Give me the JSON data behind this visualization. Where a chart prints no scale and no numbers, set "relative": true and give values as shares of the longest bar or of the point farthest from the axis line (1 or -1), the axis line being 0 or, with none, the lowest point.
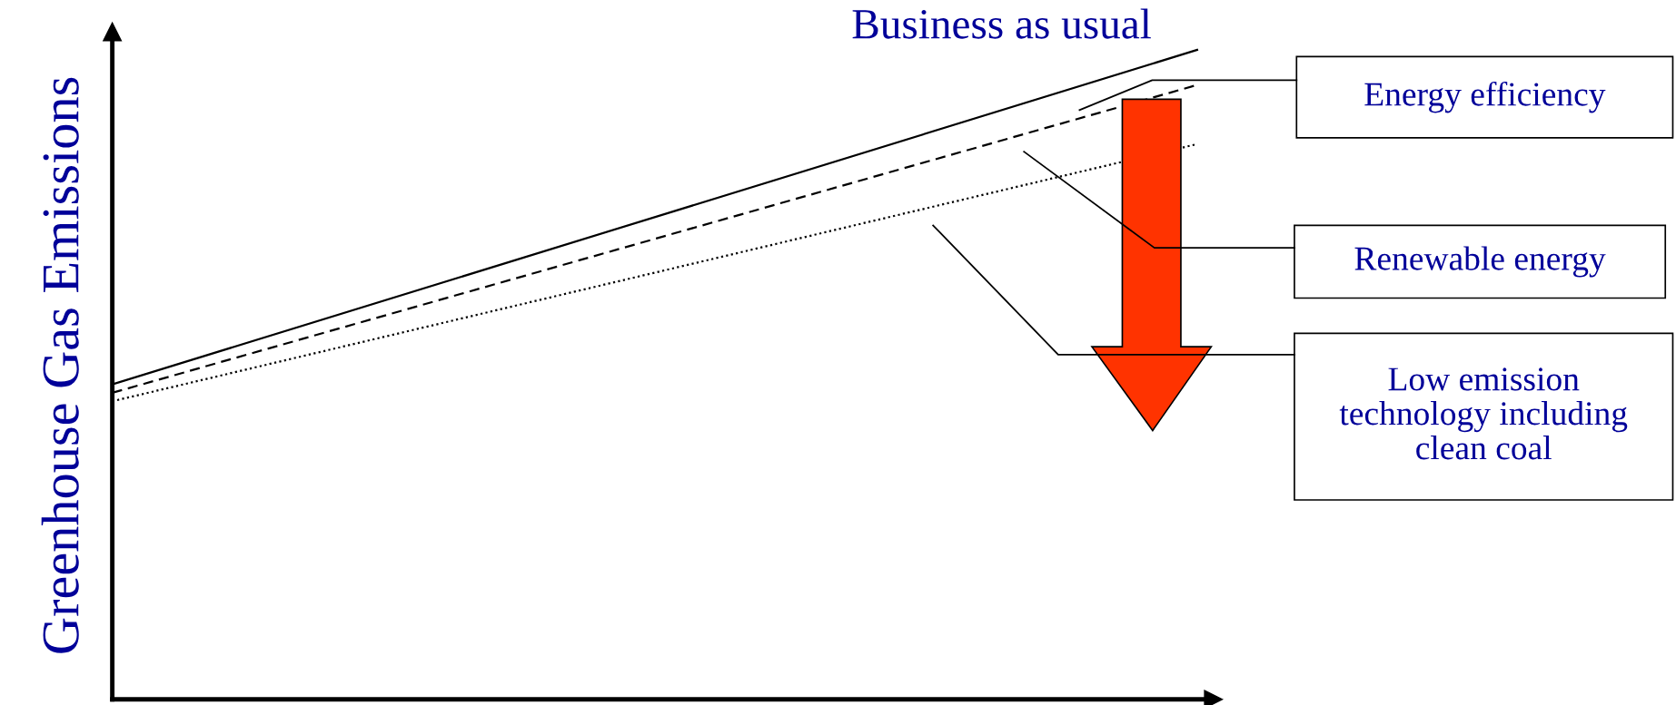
{
  "chart_data": {
    "type": "line",
    "relative": true,
    "ylabel": "Greenhouse Gas Emissions",
    "categories": [
      null,
      null
    ],
    "series": [
      {
        "name": "Business as usual",
        "color": "#000000",
        "line_style": "solid",
        "values": [
          0.485,
          1
        ]
      },
      {
        "color": "#000000",
        "line_style": "dashed",
        "values": [
          0.472,
          0.946
        ]
      },
      {
        "color": "#000000",
        "line_style": "dotted",
        "values": [
          0.459,
          0.855
        ]
      }
    ],
    "annotations": [
      "Energy efficiency",
      "Renewable energy",
      "Low emission\ntechnology including\nclean coal"
    ],
    "grid": false,
    "marker": "none"
  }
}
